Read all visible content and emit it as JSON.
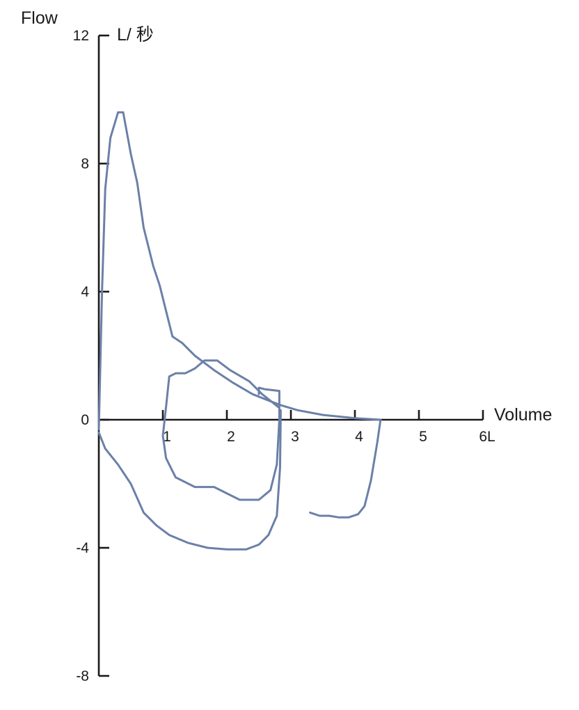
{
  "chart_data": {
    "type": "line",
    "ylabel": "Flow",
    "yunit": "L/ 秒",
    "xlabel": "Volume",
    "xunit_suffix": "L",
    "xlim": [
      0,
      6
    ],
    "ylim": [
      -8,
      12
    ],
    "x_ticks": [
      1,
      2,
      3,
      4,
      5,
      6
    ],
    "x_tick_labels": [
      "1",
      "2",
      "3",
      "4",
      "5",
      "6L"
    ],
    "y_ticks": [
      12,
      8,
      4,
      0,
      -4,
      -8
    ],
    "y_tick_labels": [
      "12",
      "8",
      "4",
      "0",
      "-4",
      "-8"
    ],
    "grid": false,
    "line_color": "#6b80a8",
    "series": [
      {
        "points": [
          [
            0.0,
            -0.3
          ],
          [
            0.05,
            4.0
          ],
          [
            0.1,
            7.2
          ],
          [
            0.18,
            8.8
          ],
          [
            0.3,
            9.6
          ],
          [
            0.38,
            9.6
          ],
          [
            0.5,
            8.3
          ],
          [
            0.6,
            7.4
          ],
          [
            0.7,
            6.0
          ],
          [
            0.85,
            4.8
          ],
          [
            0.95,
            4.2
          ],
          [
            1.05,
            3.4
          ],
          [
            1.15,
            2.6
          ],
          [
            1.3,
            2.4
          ],
          [
            1.5,
            2.0
          ],
          [
            1.8,
            1.55
          ],
          [
            2.1,
            1.15
          ],
          [
            2.4,
            0.8
          ],
          [
            2.65,
            0.6
          ],
          [
            2.85,
            0.45
          ],
          [
            3.1,
            0.3
          ],
          [
            3.5,
            0.15
          ],
          [
            4.0,
            0.05
          ],
          [
            4.4,
            0.0
          ]
        ]
      },
      {
        "points": [
          [
            2.8,
            0.4
          ],
          [
            2.55,
            0.8
          ],
          [
            2.35,
            1.2
          ],
          [
            2.05,
            1.55
          ],
          [
            1.85,
            1.85
          ],
          [
            1.65,
            1.85
          ],
          [
            1.5,
            1.6
          ],
          [
            1.35,
            1.45
          ],
          [
            1.2,
            1.45
          ],
          [
            1.1,
            1.35
          ],
          [
            1.05,
            0.4
          ],
          [
            1.0,
            -0.5
          ],
          [
            1.05,
            -1.2
          ],
          [
            1.2,
            -1.8
          ],
          [
            1.5,
            -2.1
          ],
          [
            1.8,
            -2.1
          ],
          [
            2.2,
            -2.5
          ],
          [
            2.5,
            -2.5
          ],
          [
            2.68,
            -2.2
          ],
          [
            2.78,
            -1.4
          ],
          [
            2.82,
            0.0
          ],
          [
            2.82,
            0.9
          ],
          [
            2.6,
            0.95
          ],
          [
            2.5,
            1.0
          ],
          [
            2.5,
            0.8
          ]
        ]
      },
      {
        "points": [
          [
            0.0,
            -0.4
          ],
          [
            0.1,
            -0.9
          ],
          [
            0.3,
            -1.4
          ],
          [
            0.5,
            -2.0
          ],
          [
            0.7,
            -2.9
          ],
          [
            0.9,
            -3.3
          ],
          [
            1.1,
            -3.6
          ],
          [
            1.4,
            -3.85
          ],
          [
            1.7,
            -4.0
          ],
          [
            2.0,
            -4.05
          ],
          [
            2.3,
            -4.05
          ],
          [
            2.5,
            -3.9
          ],
          [
            2.65,
            -3.6
          ],
          [
            2.78,
            -3.0
          ],
          [
            2.83,
            -1.5
          ],
          [
            2.84,
            0.0
          ],
          [
            2.84,
            0.3
          ]
        ]
      },
      {
        "points": [
          [
            3.3,
            -2.9
          ],
          [
            3.45,
            -3.0
          ],
          [
            3.6,
            -3.0
          ],
          [
            3.75,
            -3.05
          ],
          [
            3.9,
            -3.05
          ],
          [
            4.05,
            -2.95
          ],
          [
            4.15,
            -2.7
          ],
          [
            4.25,
            -1.9
          ],
          [
            4.35,
            -0.7
          ],
          [
            4.4,
            0.0
          ]
        ]
      }
    ]
  }
}
